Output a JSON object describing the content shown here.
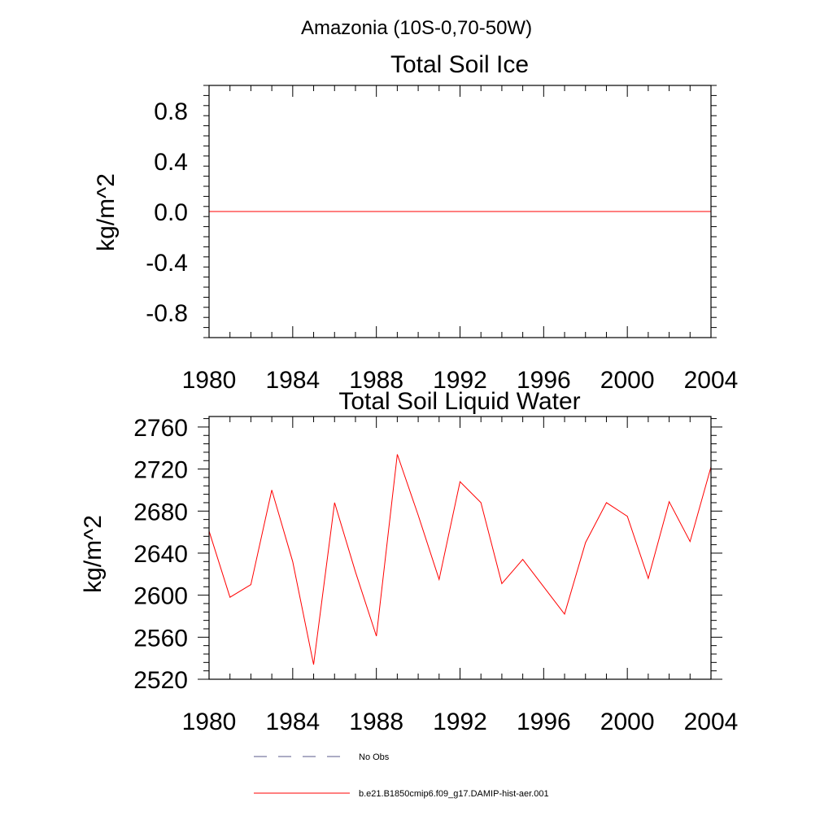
{
  "title": "Amazonia (10S-0,70-50W)",
  "colors": {
    "series": "#ff0000",
    "obs": "#5a5a8a",
    "axis": "#000000"
  },
  "legend": [
    {
      "label": "No Obs",
      "style": "dashed",
      "color": "#5a5a8a"
    },
    {
      "label": "b.e21.B1850cmip6.f09_g17.DAMIP-hist-aer.001",
      "style": "solid",
      "color": "#ff0000"
    }
  ],
  "chart_data": [
    {
      "type": "line",
      "title": "Total Soil Ice",
      "xlabel": "",
      "ylabel": "kg/m^2",
      "xlim": [
        1980,
        2004
      ],
      "ylim": [
        -1.0,
        1.0
      ],
      "xticks": [
        "1980",
        "1984",
        "1988",
        "1992",
        "1996",
        "2000",
        "2004"
      ],
      "yticks": [
        "0.8",
        "0.4",
        "0.0",
        "-0.4",
        "-0.8"
      ],
      "x": [
        1980,
        1981,
        1982,
        1983,
        1984,
        1985,
        1986,
        1987,
        1988,
        1989,
        1990,
        1991,
        1992,
        1993,
        1994,
        1995,
        1996,
        1997,
        1998,
        1999,
        2000,
        2001,
        2002,
        2003,
        2004
      ],
      "series": [
        {
          "values": [
            0,
            0,
            0,
            0,
            0,
            0,
            0,
            0,
            0,
            0,
            0,
            0,
            0,
            0,
            0,
            0,
            0,
            0,
            0,
            0,
            0,
            0,
            0,
            0,
            0
          ]
        }
      ]
    },
    {
      "type": "line",
      "title": "Total Soil Liquid Water",
      "xlabel": "",
      "ylabel": "kg/m^2",
      "xlim": [
        1980,
        2004
      ],
      "ylim": [
        2520,
        2770
      ],
      "xticks": [
        "1980",
        "1984",
        "1988",
        "1992",
        "1996",
        "2000",
        "2004"
      ],
      "yticks": [
        "2760",
        "2720",
        "2680",
        "2640",
        "2600",
        "2560",
        "2520"
      ],
      "x": [
        1980,
        1981,
        1982,
        1983,
        1984,
        1985,
        1986,
        1987,
        1988,
        1989,
        1990,
        1991,
        1992,
        1993,
        1994,
        1995,
        1996,
        1997,
        1998,
        1999,
        2000,
        2001,
        2002,
        2003,
        2004
      ],
      "series": [
        {
          "values": [
            2661,
            2598,
            2610,
            2700,
            2632,
            2534,
            2688,
            2622,
            2561,
            2734,
            2676,
            2615,
            2708,
            2688,
            2611,
            2634,
            2608,
            2582,
            2650,
            2688,
            2675,
            2616,
            2689,
            2651,
            2722
          ]
        }
      ]
    }
  ]
}
